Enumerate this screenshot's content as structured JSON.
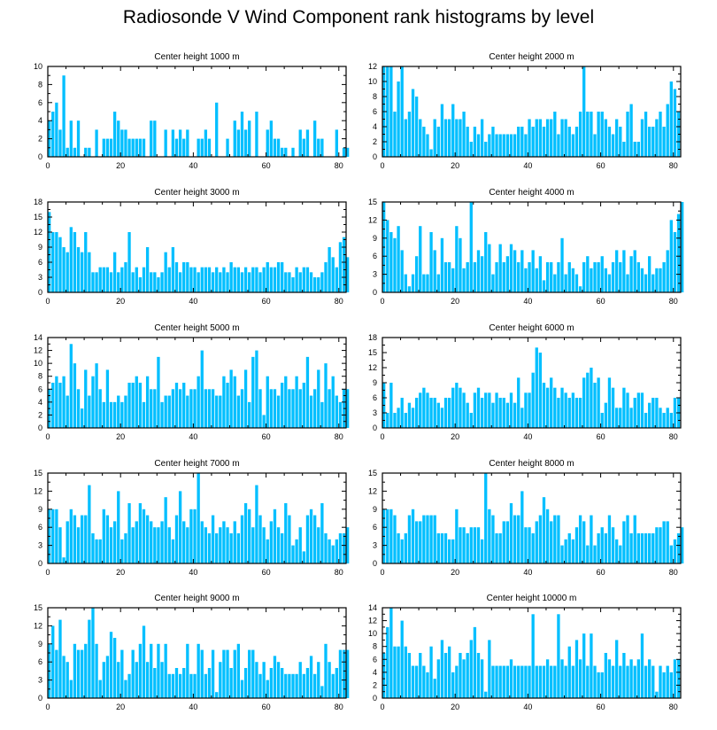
{
  "title": "Radiosonde V Wind Component rank histograms by level",
  "colors": {
    "bar": "#00BFFF",
    "bar_edge": "#ffffff",
    "axis": "#000000",
    "background": "#ffffff"
  },
  "chart_data": [
    {
      "type": "bar",
      "title": "Center height 1000 m",
      "ylim": [
        0,
        10
      ],
      "yticks": [
        0,
        2,
        4,
        6,
        8,
        10
      ],
      "xlim": [
        0,
        82
      ],
      "xticks": [
        0,
        20,
        40,
        60,
        80
      ],
      "values": [
        4,
        5,
        6,
        3,
        9,
        1,
        4,
        1,
        4,
        0,
        1,
        1,
        0,
        3,
        0,
        2,
        2,
        2,
        5,
        4,
        3,
        3,
        2,
        2,
        2,
        2,
        2,
        0,
        4,
        4,
        0,
        0,
        3,
        0,
        3,
        2,
        3,
        2,
        3,
        0,
        0,
        2,
        2,
        3,
        2,
        0,
        6,
        0,
        0,
        2,
        0,
        4,
        3,
        5,
        3,
        4,
        0,
        5,
        0,
        0,
        3,
        4,
        2,
        2,
        1,
        1,
        0,
        1,
        0,
        3,
        2,
        3,
        0,
        4,
        2,
        2,
        0,
        0,
        0,
        3,
        0,
        1,
        1
      ]
    },
    {
      "type": "bar",
      "title": "Center height 2000 m",
      "ylim": [
        0,
        12
      ],
      "yticks": [
        0,
        2,
        4,
        6,
        8,
        10,
        12
      ],
      "xlim": [
        0,
        82
      ],
      "xticks": [
        0,
        20,
        40,
        60,
        80
      ],
      "values": [
        12,
        12,
        12,
        6,
        10,
        12,
        5,
        6,
        9,
        8,
        5,
        4,
        3,
        1,
        5,
        4,
        7,
        5,
        5,
        7,
        5,
        5,
        6,
        4,
        2,
        4,
        3,
        5,
        2,
        3,
        4,
        3,
        3,
        3,
        3,
        3,
        3,
        4,
        4,
        3,
        5,
        4,
        5,
        5,
        4,
        5,
        5,
        6,
        3,
        5,
        5,
        4,
        3,
        4,
        6,
        12,
        6,
        6,
        3,
        6,
        6,
        5,
        4,
        3,
        5,
        4,
        2,
        6,
        7,
        2,
        2,
        5,
        6,
        4,
        4,
        5,
        6,
        4,
        7,
        10,
        9,
        6
      ]
    },
    {
      "type": "bar",
      "title": "Center height 3000 m",
      "ylim": [
        0,
        18
      ],
      "yticks": [
        0,
        3,
        6,
        9,
        12,
        15,
        18
      ],
      "xlim": [
        0,
        82
      ],
      "xticks": [
        0,
        20,
        40,
        60,
        80
      ],
      "values": [
        16,
        12,
        12,
        11,
        9,
        8,
        13,
        12,
        9,
        8,
        12,
        8,
        4,
        4,
        5,
        5,
        5,
        4,
        8,
        4,
        5,
        6,
        12,
        4,
        5,
        3,
        5,
        9,
        4,
        4,
        3,
        4,
        8,
        5,
        9,
        6,
        4,
        6,
        6,
        5,
        5,
        4,
        5,
        5,
        5,
        4,
        5,
        4,
        5,
        4,
        6,
        5,
        5,
        4,
        5,
        4,
        5,
        5,
        4,
        5,
        6,
        5,
        5,
        6,
        6,
        4,
        4,
        3,
        5,
        4,
        5,
        5,
        4,
        3,
        3,
        4,
        6,
        9,
        7,
        5,
        10,
        11,
        7
      ]
    },
    {
      "type": "bar",
      "title": "Center height 4000 m",
      "ylim": [
        0,
        15
      ],
      "yticks": [
        0,
        3,
        6,
        9,
        12,
        15
      ],
      "xlim": [
        0,
        82
      ],
      "xticks": [
        0,
        20,
        40,
        60,
        80
      ],
      "values": [
        15,
        12,
        10,
        9,
        11,
        7,
        3,
        1,
        3,
        6,
        11,
        3,
        3,
        10,
        7,
        3,
        9,
        5,
        5,
        4,
        11,
        9,
        4,
        5,
        15,
        5,
        7,
        6,
        10,
        8,
        3,
        5,
        8,
        5,
        6,
        8,
        7,
        5,
        7,
        4,
        5,
        7,
        4,
        6,
        2,
        5,
        5,
        3,
        5,
        9,
        3,
        5,
        4,
        3,
        1,
        5,
        6,
        4,
        5,
        5,
        6,
        4,
        3,
        5,
        7,
        5,
        7,
        3,
        6,
        7,
        5,
        4,
        3,
        6,
        3,
        4,
        4,
        5,
        7,
        12,
        10,
        13,
        15
      ]
    },
    {
      "type": "bar",
      "title": "Center height 5000 m",
      "ylim": [
        0,
        14
      ],
      "yticks": [
        0,
        2,
        4,
        6,
        8,
        10,
        12,
        14
      ],
      "xlim": [
        0,
        82
      ],
      "xticks": [
        0,
        20,
        40,
        60,
        80
      ],
      "values": [
        6,
        7,
        8,
        7,
        8,
        5,
        13,
        10,
        6,
        3,
        9,
        5,
        8,
        10,
        6,
        4,
        9,
        4,
        4,
        5,
        4,
        5,
        7,
        7,
        8,
        7,
        4,
        8,
        6,
        6,
        11,
        4,
        5,
        5,
        6,
        7,
        6,
        7,
        5,
        6,
        6,
        8,
        12,
        6,
        6,
        6,
        5,
        5,
        8,
        7,
        9,
        8,
        5,
        6,
        9,
        4,
        11,
        12,
        6,
        2,
        8,
        6,
        6,
        5,
        7,
        8,
        6,
        6,
        8,
        6,
        7,
        11,
        5,
        6,
        9,
        4,
        10,
        6,
        8,
        5,
        4,
        6,
        6
      ]
    },
    {
      "type": "bar",
      "title": "Center height 6000 m",
      "ylim": [
        0,
        18
      ],
      "yticks": [
        0,
        3,
        6,
        9,
        12,
        15,
        18
      ],
      "xlim": [
        0,
        82
      ],
      "xticks": [
        0,
        20,
        40,
        60,
        80
      ],
      "values": [
        9,
        3,
        9,
        3,
        4,
        6,
        3,
        5,
        4,
        6,
        7,
        8,
        7,
        6,
        6,
        5,
        4,
        6,
        6,
        8,
        9,
        8,
        7,
        5,
        3,
        7,
        8,
        6,
        7,
        7,
        5,
        7,
        6,
        6,
        5,
        7,
        5,
        10,
        4,
        7,
        7,
        11,
        16,
        15,
        9,
        8,
        10,
        8,
        6,
        8,
        7,
        6,
        7,
        6,
        6,
        10,
        11,
        12,
        9,
        10,
        3,
        5,
        10,
        8,
        4,
        4,
        8,
        7,
        4,
        6,
        7,
        7,
        3,
        5,
        6,
        6,
        4,
        3,
        4,
        3,
        6,
        6
      ]
    },
    {
      "type": "bar",
      "title": "Center height 7000 m",
      "ylim": [
        0,
        15
      ],
      "yticks": [
        0,
        3,
        6,
        9,
        12,
        15
      ],
      "xlim": [
        0,
        82
      ],
      "xticks": [
        0,
        20,
        40,
        60,
        80
      ],
      "values": [
        9,
        9,
        9,
        6,
        1,
        7,
        9,
        8,
        6,
        8,
        8,
        13,
        5,
        4,
        4,
        9,
        8,
        6,
        7,
        12,
        4,
        5,
        10,
        6,
        7,
        10,
        9,
        8,
        7,
        6,
        6,
        7,
        11,
        6,
        4,
        8,
        12,
        7,
        6,
        9,
        9,
        15,
        7,
        6,
        5,
        8,
        5,
        6,
        7,
        6,
        5,
        7,
        5,
        8,
        10,
        9,
        6,
        13,
        8,
        6,
        4,
        7,
        9,
        6,
        5,
        10,
        8,
        3,
        4,
        6,
        2,
        8,
        9,
        8,
        6,
        10,
        5,
        4,
        3,
        4,
        5,
        5,
        6
      ]
    },
    {
      "type": "bar",
      "title": "Center height 8000 m",
      "ylim": [
        0,
        15
      ],
      "yticks": [
        0,
        3,
        6,
        9,
        12,
        15
      ],
      "xlim": [
        0,
        82
      ],
      "xticks": [
        0,
        20,
        40,
        60,
        80
      ],
      "values": [
        9,
        9,
        9,
        8,
        5,
        4,
        5,
        8,
        9,
        7,
        7,
        8,
        8,
        8,
        8,
        5,
        5,
        5,
        4,
        4,
        9,
        6,
        6,
        5,
        6,
        6,
        6,
        4,
        15,
        9,
        8,
        5,
        5,
        7,
        7,
        10,
        8,
        8,
        12,
        6,
        6,
        5,
        7,
        8,
        11,
        9,
        7,
        8,
        8,
        3,
        4,
        5,
        4,
        6,
        8,
        7,
        3,
        8,
        3,
        5,
        6,
        5,
        8,
        6,
        4,
        3,
        7,
        8,
        5,
        8,
        5,
        5,
        5,
        5,
        5,
        6,
        6,
        7,
        7,
        3,
        4,
        5,
        6
      ]
    },
    {
      "type": "bar",
      "title": "Center height 9000 m",
      "ylim": [
        0,
        15
      ],
      "yticks": [
        0,
        3,
        6,
        9,
        12,
        15
      ],
      "xlim": [
        0,
        82
      ],
      "xticks": [
        0,
        20,
        40,
        60,
        80
      ],
      "values": [
        9,
        12,
        8,
        13,
        7,
        6,
        3,
        9,
        8,
        8,
        9,
        13,
        15,
        9,
        3,
        6,
        7,
        11,
        10,
        6,
        8,
        3,
        4,
        8,
        6,
        9,
        12,
        6,
        9,
        5,
        9,
        6,
        9,
        4,
        4,
        5,
        4,
        5,
        9,
        4,
        4,
        9,
        8,
        4,
        5,
        8,
        1,
        6,
        8,
        8,
        5,
        8,
        9,
        3,
        5,
        8,
        8,
        6,
        4,
        6,
        3,
        5,
        7,
        6,
        5,
        4,
        4,
        4,
        4,
        6,
        4,
        5,
        7,
        4,
        6,
        2,
        9,
        6,
        4,
        5,
        8,
        8,
        8
      ]
    },
    {
      "type": "bar",
      "title": "Center height 10000 m",
      "ylim": [
        0,
        14
      ],
      "yticks": [
        0,
        2,
        4,
        6,
        8,
        10,
        12,
        14
      ],
      "xlim": [
        0,
        82
      ],
      "xticks": [
        0,
        20,
        40,
        60,
        80
      ],
      "values": [
        7,
        11,
        14,
        8,
        8,
        12,
        8,
        7,
        5,
        5,
        7,
        5,
        4,
        8,
        3,
        6,
        9,
        7,
        8,
        4,
        5,
        7,
        6,
        7,
        9,
        11,
        7,
        6,
        1,
        9,
        5,
        5,
        5,
        5,
        5,
        6,
        5,
        5,
        5,
        5,
        5,
        13,
        5,
        5,
        5,
        6,
        5,
        5,
        13,
        6,
        5,
        8,
        5,
        9,
        6,
        10,
        5,
        10,
        5,
        4,
        4,
        7,
        6,
        5,
        9,
        5,
        7,
        5,
        6,
        5,
        6,
        10,
        5,
        6,
        5,
        1,
        5,
        4,
        5,
        4,
        6,
        6
      ]
    }
  ]
}
